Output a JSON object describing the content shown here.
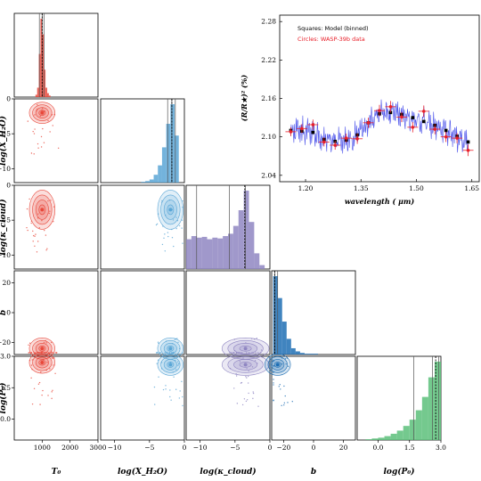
{
  "chart_data": [
    {
      "type": "corner",
      "parameters": [
        "T0",
        "log_X_H2O",
        "log_kappa_cloud",
        "b",
        "log_P0"
      ],
      "axis_labels": {
        "T0": "T₀",
        "log_X_H2O": "log(X_H₂O)",
        "log_kappa_cloud": "log(κ_cloud)",
        "b": "b",
        "log_P0": "log(P₀)"
      },
      "ranges": {
        "T0": [
          0,
          3000
        ],
        "log_X_H2O": [
          -12,
          0
        ],
        "log_kappa_cloud": [
          -12,
          0
        ],
        "b": [
          -28,
          28
        ],
        "log_P0": [
          -1,
          3
        ]
      },
      "ticks": {
        "T0": [
          "1000",
          "2000",
          "3000"
        ],
        "log_X_H2O": [
          "−10",
          "−5",
          "0"
        ],
        "log_kappa_cloud": [
          "−10",
          "−5",
          "0"
        ],
        "b": [
          "−20",
          "0",
          "20"
        ],
        "log_P0": [
          "0.0",
          "1.5",
          "3.0"
        ]
      },
      "ticks_y": {
        "log_X_H2O": [
          "0",
          "−5",
          "−10"
        ],
        "log_kappa_cloud": [
          "0",
          "−5",
          "−10"
        ],
        "b": [
          "20",
          "0",
          "−20"
        ],
        "log_P0": [
          "3.0",
          "1.5",
          "0.0"
        ]
      },
      "colors": {
        "T0": "#e8483b",
        "log_X_H2O": "#5aa6d6",
        "log_kappa_cloud": "#8f86c2",
        "b": "#1f6fb4",
        "log_P0": "#5cbf7a"
      },
      "marginals": {
        "T0": {
          "bins": [
            760,
            820,
            880,
            940,
            1000,
            1060,
            1120,
            1180,
            1240
          ],
          "counts": [
            0.03,
            0.12,
            0.55,
            1.0,
            0.8,
            0.35,
            0.12,
            0.05,
            0.02
          ],
          "lines": [
            900,
            1000,
            1070
          ],
          "truth": 1000
        },
        "log_X_H2O": {
          "bins": [
            -6.2,
            -5.6,
            -5.0,
            -4.4,
            -3.8,
            -3.2,
            -2.6,
            -2.0,
            -1.4
          ],
          "counts": [
            0.01,
            0.02,
            0.04,
            0.1,
            0.22,
            0.45,
            0.75,
            1.0,
            0.6
          ],
          "lines": [
            -2.4,
            -1.8,
            -1.3
          ],
          "truth": -1.8
        },
        "log_kappa_cloud": {
          "bins": [
            -12,
            -11.25,
            -10.5,
            -9.75,
            -9.0,
            -8.25,
            -7.5,
            -6.75,
            -6.0,
            -5.25,
            -4.5,
            -3.75,
            -3.0,
            -2.25,
            -1.5
          ],
          "counts": [
            0.38,
            0.42,
            0.4,
            0.41,
            0.38,
            0.4,
            0.39,
            0.42,
            0.45,
            0.55,
            0.75,
            1.0,
            0.6,
            0.2,
            0.05
          ],
          "lines": [
            -10.5,
            -5.8,
            -3.5
          ],
          "truth": -3.6
        },
        "b": {
          "bins": [
            -27,
            -24,
            -21,
            -18,
            -15,
            -12,
            -9,
            -6,
            -3,
            0,
            3,
            6,
            9,
            12,
            15,
            18,
            21,
            24
          ],
          "counts": [
            1.0,
            0.72,
            0.42,
            0.2,
            0.08,
            0.04,
            0.02,
            0.01,
            0.01,
            0.01,
            0.0,
            0.0,
            0.0,
            0.0,
            0.0,
            0.0,
            0.0,
            0.0
          ],
          "lines": [
            -26,
            -24
          ],
          "truth": -26
        },
        "log_P0": {
          "bins": [
            -0.6,
            -0.3,
            0.0,
            0.3,
            0.6,
            0.9,
            1.2,
            1.5,
            1.8,
            2.1,
            2.4,
            2.7
          ],
          "counts": [
            0.01,
            0.02,
            0.03,
            0.05,
            0.08,
            0.12,
            0.18,
            0.26,
            0.38,
            0.55,
            0.8,
            1.0
          ],
          "lines": [
            1.7,
            2.6,
            2.9
          ],
          "truth": 2.75
        }
      },
      "joint_peaks": {
        "log_X_H2O|T0": [
          1000,
          -2
        ],
        "log_kappa_cloud|T0": [
          1000,
          -3.5
        ],
        "log_kappa_cloud|log_X_H2O": [
          -2,
          -3.5
        ],
        "b|T0": [
          1000,
          -24
        ],
        "b|log_X_H2O": [
          -2,
          -24
        ],
        "b|log_kappa_cloud": [
          -3.5,
          -24
        ],
        "log_P0|T0": [
          1000,
          2.7
        ],
        "log_P0|log_X_H2O": [
          -2,
          2.6
        ],
        "log_P0|log_kappa_cloud": [
          -3.5,
          2.6
        ],
        "log_P0|b": [
          -24,
          2.6
        ]
      }
    },
    {
      "type": "line",
      "xlabel": "wavelength ( μm)",
      "ylabel": "(R/R★)² (%)",
      "xlim": [
        1.13,
        1.67
      ],
      "ylim": [
        2.03,
        2.29
      ],
      "xticks": [
        "1.20",
        "1.35",
        "1.50",
        "1.65"
      ],
      "yticks": [
        "2.04",
        "2.10",
        "2.16",
        "2.22",
        "2.28"
      ],
      "legend": [
        "Squares: Model (binned)",
        "Circles: WASP-39b data"
      ],
      "legend_colors": [
        "#000000",
        "#e8202a"
      ],
      "model_color": "#2a32e6",
      "x": [
        1.16,
        1.19,
        1.22,
        1.25,
        1.28,
        1.31,
        1.34,
        1.37,
        1.4,
        1.43,
        1.46,
        1.49,
        1.52,
        1.55,
        1.58,
        1.61,
        1.64
      ],
      "model_binned": [
        2.11,
        2.109,
        2.107,
        2.096,
        2.093,
        2.095,
        2.103,
        2.122,
        2.136,
        2.138,
        2.135,
        2.13,
        2.124,
        2.118,
        2.11,
        2.101,
        2.092
      ],
      "data": [
        2.108,
        2.113,
        2.119,
        2.092,
        2.087,
        2.098,
        2.097,
        2.122,
        2.141,
        2.147,
        2.131,
        2.115,
        2.14,
        2.112,
        2.1,
        2.098,
        2.079
      ],
      "data_err": [
        0.007,
        0.007,
        0.008,
        0.007,
        0.007,
        0.007,
        0.008,
        0.008,
        0.009,
        0.009,
        0.008,
        0.008,
        0.009,
        0.008,
        0.008,
        0.008,
        0.009
      ]
    }
  ]
}
